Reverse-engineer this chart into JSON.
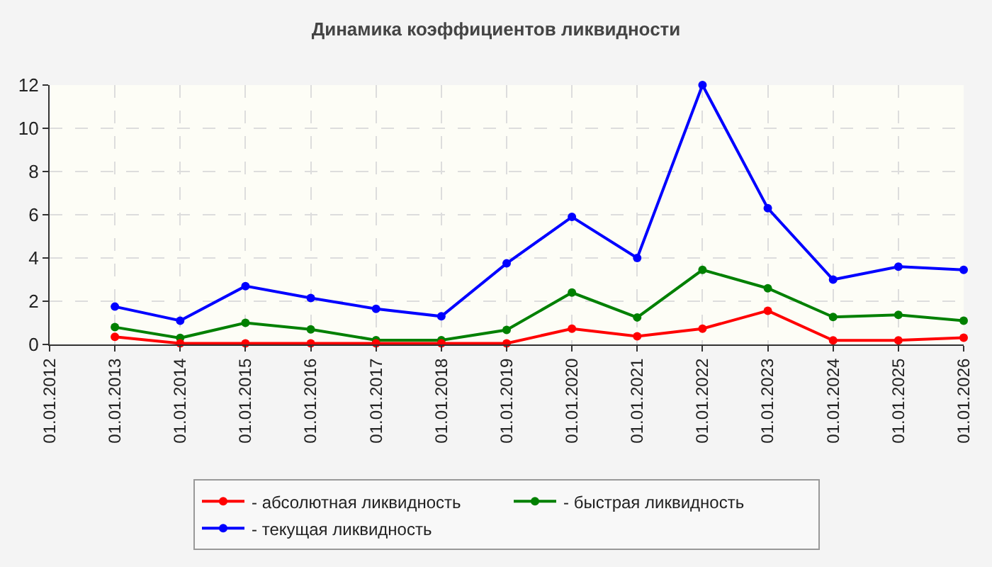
{
  "chart_data": {
    "type": "line",
    "title": "Динамика коэффициентов ликвидности",
    "categories": [
      "01.01.2012",
      "01.01.2013",
      "01.01.2014",
      "01.01.2015",
      "01.01.2016",
      "01.01.2017",
      "01.01.2018",
      "01.01.2019",
      "01.01.2020",
      "01.01.2021",
      "01.01.2022",
      "01.01.2023",
      "01.01.2024",
      "01.01.2025",
      "01.01.2026"
    ],
    "series": [
      {
        "name": "- абсолютная ликвидность",
        "color": "#ff0000",
        "values": [
          null,
          0.35,
          0.05,
          0.05,
          0.05,
          0.05,
          0.05,
          0.05,
          0.73,
          0.38,
          0.73,
          1.56,
          0.19,
          0.19,
          0.31
        ]
      },
      {
        "name": "- быстрая ликвидность",
        "color": "#008000",
        "values": [
          null,
          0.8,
          0.3,
          1.0,
          0.7,
          0.2,
          0.2,
          0.67,
          2.4,
          1.25,
          3.45,
          2.6,
          1.27,
          1.37,
          1.1
        ]
      },
      {
        "name": "- текущая ликвидность",
        "color": "#0000ff",
        "values": [
          null,
          1.75,
          1.1,
          2.7,
          2.15,
          1.65,
          1.3,
          3.75,
          5.9,
          4.0,
          12,
          6.3,
          3.0,
          3.6,
          3.45
        ]
      }
    ],
    "ylim": [
      0,
      12
    ],
    "yticks": [
      0,
      2,
      4,
      6,
      8,
      10,
      12
    ],
    "grid": true,
    "legend": "bottom",
    "marker": "circle",
    "line_style": "solid"
  }
}
